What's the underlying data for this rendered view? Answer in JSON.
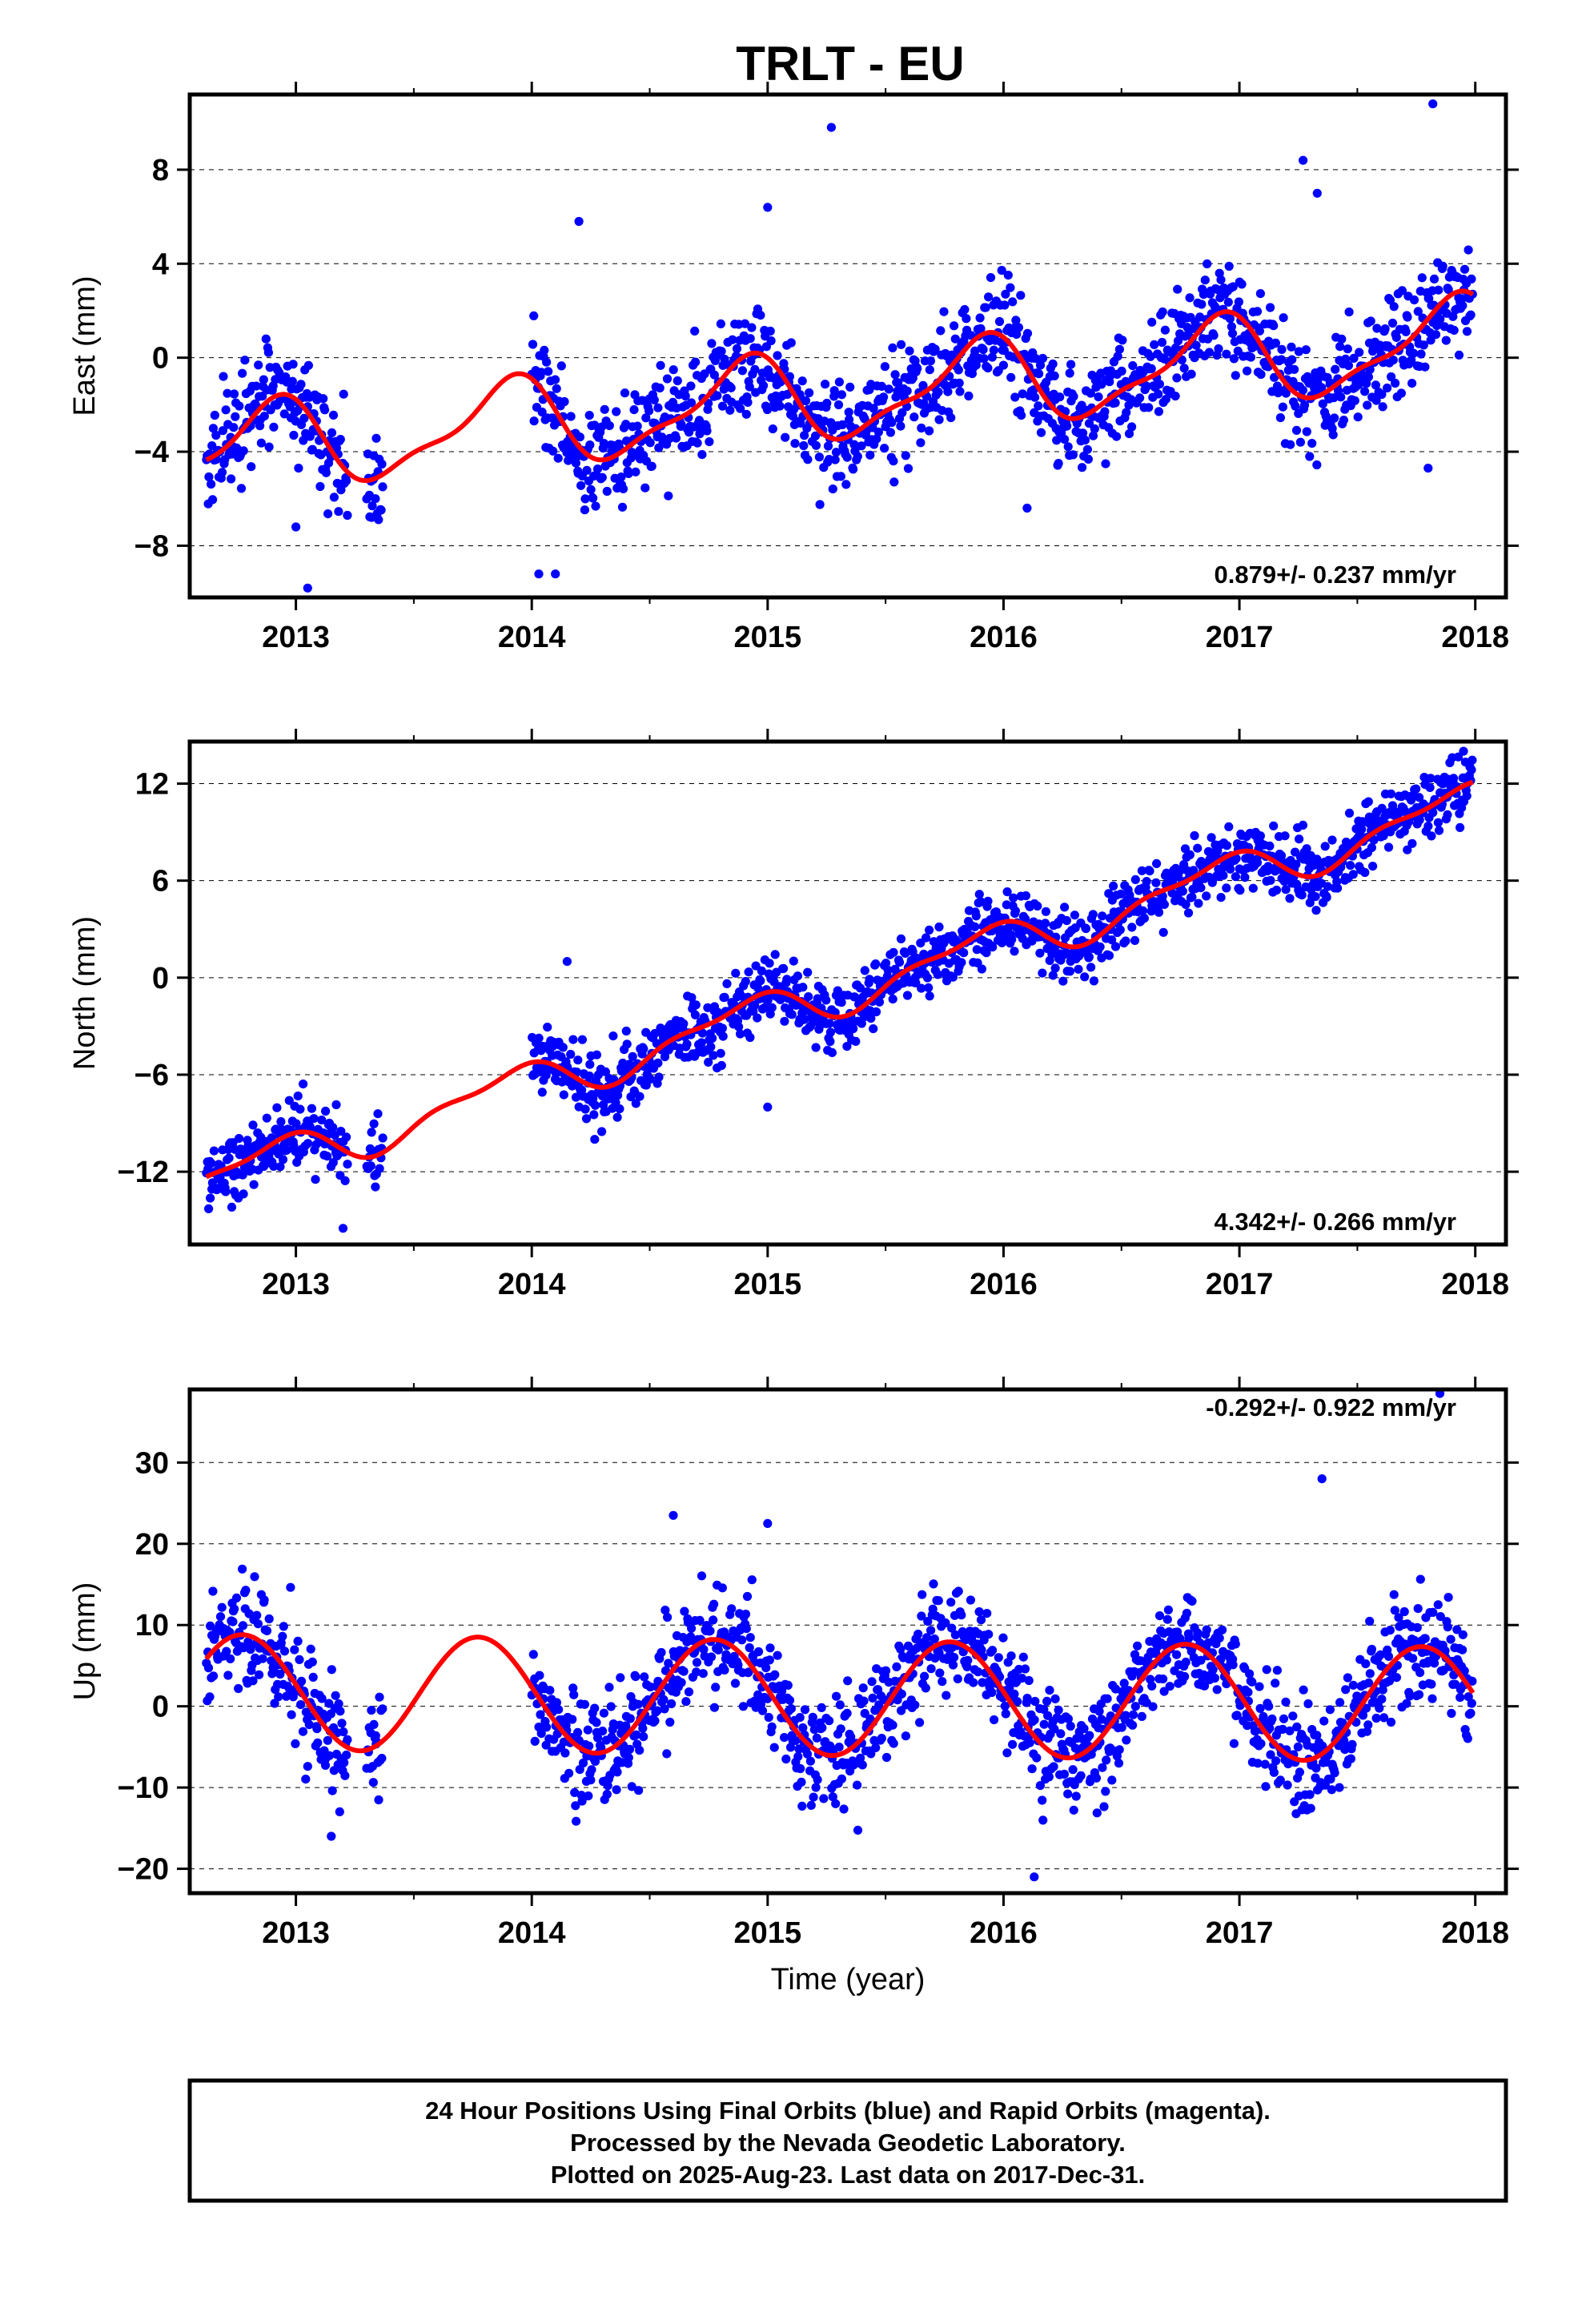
{
  "title": "TRLT - EU",
  "chart_data": [
    {
      "type": "scatter",
      "component": "east",
      "ylabel": "East (mm)",
      "xlim": [
        2012.55,
        2018.13
      ],
      "ylim": [
        -10.2,
        11.2
      ],
      "yticks": [
        -8,
        -4,
        0,
        4,
        8
      ],
      "xticks": [
        2013,
        2014,
        2015,
        2016,
        2017,
        2018
      ],
      "rate_label": "0.879+/- 0.237 mm/yr",
      "rate_mm_per_yr": 0.879,
      "offset_mm": -1.65,
      "seasonal": {
        "a1": 1.35,
        "b1": -1.1,
        "a2": 0.55,
        "b2": -0.15
      },
      "noise_sd_mm": 1.1,
      "point_count": 1420,
      "data_spans": [
        [
          2012.62,
          2013.22
        ],
        [
          2013.3,
          2013.37
        ],
        [
          2014.0,
          2017.99
        ]
      ],
      "outliers": [
        [
          2015.27,
          9.8
        ],
        [
          2017.82,
          10.8
        ],
        [
          2014.03,
          -9.2
        ],
        [
          2014.1,
          -9.2
        ],
        [
          2013.05,
          -9.8
        ],
        [
          2015.0,
          6.4
        ],
        [
          2014.2,
          5.8
        ],
        [
          2017.27,
          8.4
        ],
        [
          2017.33,
          7.0
        ],
        [
          2013.0,
          -7.2
        ],
        [
          2016.1,
          -6.4
        ],
        [
          2017.8,
          -4.7
        ]
      ]
    },
    {
      "type": "scatter",
      "component": "north",
      "ylabel": "North (mm)",
      "xlim": [
        2012.55,
        2018.13
      ],
      "ylim": [
        -16.5,
        14.6
      ],
      "yticks": [
        -12,
        -6,
        0,
        6,
        12
      ],
      "xticks": [
        2013,
        2014,
        2015,
        2016,
        2017,
        2018
      ],
      "rate_label": "4.342+/- 0.266 mm/yr",
      "rate_mm_per_yr": 4.342,
      "offset_mm": -0.9,
      "seasonal": {
        "a1": 0.9,
        "b1": -0.8,
        "a2": 0.4,
        "b2": 0.3
      },
      "noise_sd_mm": 1.0,
      "point_count": 1420,
      "data_spans": [
        [
          2012.62,
          2013.22
        ],
        [
          2013.3,
          2013.37
        ],
        [
          2014.0,
          2017.99
        ]
      ],
      "outliers": [
        [
          2014.15,
          1.0
        ],
        [
          2015.0,
          -8.0
        ],
        [
          2013.2,
          -15.5
        ],
        [
          2017.95,
          14.0
        ]
      ]
    },
    {
      "type": "scatter",
      "component": "up",
      "ylabel": "Up (mm)",
      "xlabel": "Time (year)",
      "xlim": [
        2012.55,
        2018.13
      ],
      "ylim": [
        -23,
        39
      ],
      "yticks": [
        -20,
        -10,
        0,
        10,
        20,
        30
      ],
      "xticks": [
        2013,
        2014,
        2015,
        2016,
        2017,
        2018
      ],
      "rate_label": "-0.292+/- 0.922 mm/yr",
      "rate_mm_per_yr": -0.292,
      "offset_mm": 1.0,
      "seasonal": {
        "a1": 1.0,
        "b1": -7.0,
        "a2": 0.0,
        "b2": 0.0
      },
      "noise_sd_mm": 3.2,
      "point_count": 1420,
      "data_spans": [
        [
          2012.62,
          2013.22
        ],
        [
          2013.3,
          2013.37
        ],
        [
          2014.0,
          2017.99
        ]
      ],
      "outliers": [
        [
          2017.35,
          28.0
        ],
        [
          2017.85,
          38.5
        ],
        [
          2015.0,
          22.5
        ],
        [
          2014.6,
          23.5
        ],
        [
          2016.13,
          -21.0
        ],
        [
          2013.15,
          -16.0
        ]
      ]
    }
  ],
  "footer": {
    "line1": "24 Hour Positions Using Final Orbits (blue) and Rapid Orbits (magenta).",
    "line2": "Processed by the Nevada Geodetic Laboratory.",
    "line3": "Plotted on 2025-Aug-23. Last data on 2017-Dec-31."
  },
  "colors": {
    "points": "#0000ff",
    "model": "#ff0000",
    "frame": "#000000"
  }
}
